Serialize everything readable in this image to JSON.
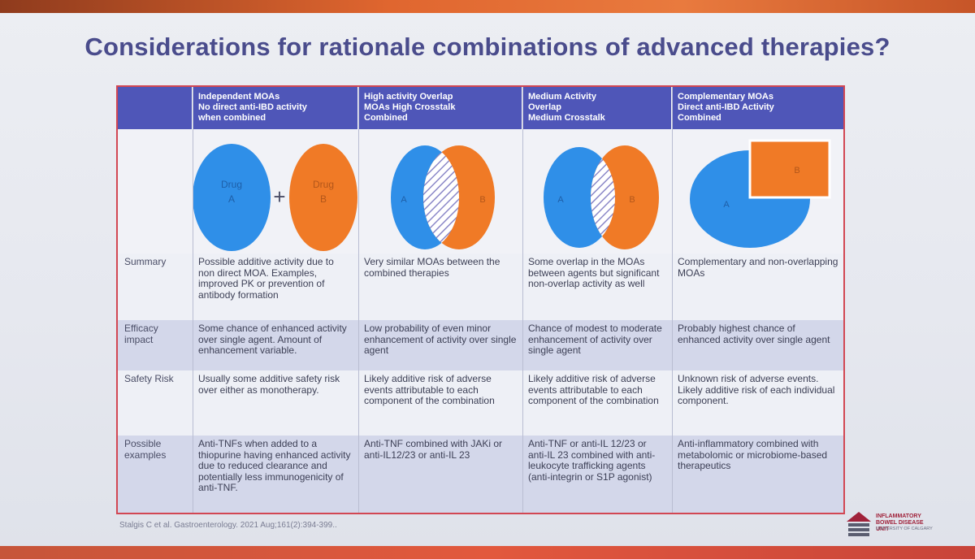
{
  "title": "Considerations for rationale combinations of advanced therapies?",
  "headers": [
    {
      "lines": [
        "Independent MOAs",
        "No direct anti-IBD activity",
        "when combined"
      ]
    },
    {
      "lines": [
        "High activity Overlap",
        "MOAs High Crosstalk",
        "Combined"
      ]
    },
    {
      "lines": [
        "Medium Activity",
        "Overlap",
        "Medium Crosstalk"
      ]
    },
    {
      "lines": [
        "Complementary MOAs",
        "Direct anti-IBD Activity",
        "Combined"
      ]
    }
  ],
  "diagram_labels": {
    "drug_a": [
      "Drug",
      "A"
    ],
    "drug_b": [
      "Drug",
      "B"
    ],
    "plus": "+",
    "a": "A",
    "b": "B"
  },
  "rows": [
    {
      "label": "Summary",
      "cells": [
        "Possible additive activity due to non direct MOA. Examples, improved PK or prevention of antibody formation",
        "Very similar MOAs between the combined therapies",
        "Some overlap in the MOAs between agents but significant non-overlap activity as well",
        "Complementary and non-overlapping MOAs"
      ]
    },
    {
      "label": "Efficacy impact",
      "cells": [
        "Some chance of enhanced activity over single agent. Amount of enhancement variable.",
        "Low probability of even minor enhancement of activity over single agent",
        "Chance of modest to moderate enhancement of activity over single agent",
        "Probably highest chance of enhanced activity over single agent"
      ]
    },
    {
      "label": "Safety Risk",
      "cells": [
        "Usually some additive safety risk over either as monotherapy.",
        "Likely additive risk of adverse events attributable to each component of the combination",
        "Likely additive risk of adverse events attributable to each component of the combination",
        "Unknown risk of adverse events. Likely additive risk of each individual component."
      ]
    },
    {
      "label": "Possible examples",
      "cells": [
        "Anti-TNFs when added to a thiopurine having enhanced activity due to reduced clearance and potentially less immunogenicity of anti-TNF.",
        "Anti-TNF combined with JAKi or anti-IL12/23 or anti-IL 23",
        "Anti-TNF or anti-IL 12/23 or anti-IL 23 combined with anti-leukocyte trafficking agents (anti-integrin or S1P agonist)",
        "Anti-inflammatory combined with metabolomic or microbiome-based therapeutics"
      ]
    }
  ],
  "citation": "Stalgis C et al. Gastroenterology. 2021 Aug;161(2):394-399..",
  "logo": {
    "title_lines": [
      "INFLAMMATORY",
      "BOWEL DISEASE UNIT"
    ],
    "subtitle": "UNIVERSITY OF CALGARY"
  },
  "colors": {
    "header_bg": "#4f56b8",
    "drug_a": "#2f8fe8",
    "drug_b": "#f07a26",
    "border": "#d24753",
    "title": "#4a4c8c"
  }
}
